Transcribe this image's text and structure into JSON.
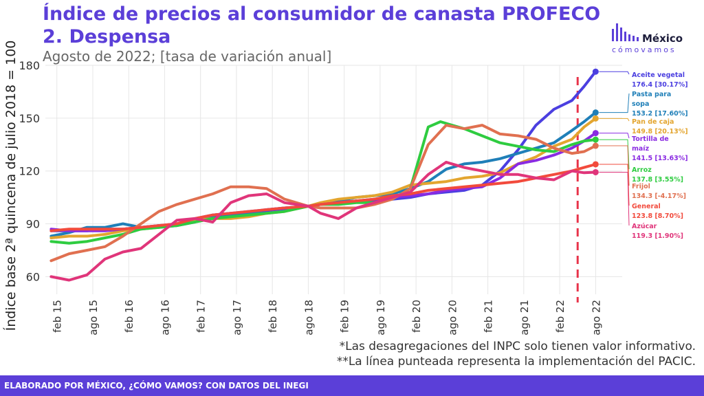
{
  "header": {
    "title_line1": "Índice de precios al consumidor de canasta PROFECO",
    "title_line2": "2. Despensa",
    "subtitle": "Agosto de 2022; [tasa de variación anual]"
  },
  "logo": {
    "name": "México",
    "tagline": "cómovamos"
  },
  "notes": {
    "note1": "*Las desagregaciones del INPC solo tienen valor informativo.",
    "note2": "**La línea punteada representa la implementación del PACIC."
  },
  "footer": {
    "text": "ELABORADO POR MÉXICO, ¿CÓMO VAMOS? CON DATOS DEL INEGI"
  },
  "colors": {
    "brand": "#5b3fd8",
    "grid": "#e6e6e6",
    "pacic_line": "#e8334a"
  },
  "chart_data": {
    "type": "line",
    "ylabel": "Índice base 2ª quincena de julio 2018 = 100",
    "ylim": [
      50,
      180
    ],
    "yticks": [
      60,
      90,
      120,
      150,
      180
    ],
    "xlim": [
      2014.92,
      2022.95
    ],
    "xticks": [
      {
        "label": "feb 15",
        "x": 2015.08
      },
      {
        "label": "ago 15",
        "x": 2015.58
      },
      {
        "label": "feb 16",
        "x": 2016.08
      },
      {
        "label": "ago 16",
        "x": 2016.58
      },
      {
        "label": "feb 17",
        "x": 2017.08
      },
      {
        "label": "ago 17",
        "x": 2017.58
      },
      {
        "label": "feb 18",
        "x": 2018.08
      },
      {
        "label": "ago 18",
        "x": 2018.58
      },
      {
        "label": "feb 19",
        "x": 2019.08
      },
      {
        "label": "ago 19",
        "x": 2019.58
      },
      {
        "label": "feb 20",
        "x": 2020.08
      },
      {
        "label": "ago 20",
        "x": 2020.58
      },
      {
        "label": "feb 21",
        "x": 2021.08
      },
      {
        "label": "ago 21",
        "x": 2021.58
      },
      {
        "label": "feb 22",
        "x": 2022.08
      },
      {
        "label": "ago 22",
        "x": 2022.58
      }
    ],
    "pacic_x": 2022.33,
    "grid": true,
    "legend": "right",
    "series": [
      {
        "name": "Aceite vegetal",
        "end_label": "176.4 [30.17%]",
        "color": "#4b3fe0",
        "points": [
          [
            2015.0,
            86
          ],
          [
            2015.25,
            86
          ],
          [
            2015.5,
            86
          ],
          [
            2015.75,
            87
          ],
          [
            2016.0,
            87
          ],
          [
            2016.25,
            88
          ],
          [
            2016.5,
            88
          ],
          [
            2016.75,
            89
          ],
          [
            2017.0,
            91
          ],
          [
            2017.25,
            95
          ],
          [
            2017.5,
            96
          ],
          [
            2017.75,
            96
          ],
          [
            2018.0,
            97
          ],
          [
            2018.25,
            98
          ],
          [
            2018.58,
            100
          ],
          [
            2018.75,
            101
          ],
          [
            2019.0,
            102
          ],
          [
            2019.25,
            103
          ],
          [
            2019.5,
            103
          ],
          [
            2019.75,
            104
          ],
          [
            2020.0,
            105
          ],
          [
            2020.25,
            107
          ],
          [
            2020.5,
            108
          ],
          [
            2020.75,
            109
          ],
          [
            2021.0,
            112
          ],
          [
            2021.25,
            120
          ],
          [
            2021.5,
            132
          ],
          [
            2021.75,
            146
          ],
          [
            2022.0,
            155
          ],
          [
            2022.25,
            160
          ],
          [
            2022.42,
            168
          ],
          [
            2022.58,
            176.4
          ]
        ]
      },
      {
        "name": "Pasta para sopa",
        "end_label": "153.2 [17.60%]",
        "color": "#1f7fb8",
        "points": [
          [
            2015.0,
            83
          ],
          [
            2015.25,
            85
          ],
          [
            2015.5,
            88
          ],
          [
            2015.75,
            88
          ],
          [
            2016.0,
            90
          ],
          [
            2016.25,
            88
          ],
          [
            2016.5,
            89
          ],
          [
            2016.75,
            89
          ],
          [
            2017.0,
            92
          ],
          [
            2017.25,
            94
          ],
          [
            2017.5,
            95
          ],
          [
            2017.75,
            96
          ],
          [
            2018.0,
            98
          ],
          [
            2018.25,
            99
          ],
          [
            2018.58,
            100
          ],
          [
            2018.75,
            101
          ],
          [
            2019.0,
            103
          ],
          [
            2019.25,
            105
          ],
          [
            2019.5,
            106
          ],
          [
            2019.75,
            107
          ],
          [
            2020.0,
            110
          ],
          [
            2020.25,
            114
          ],
          [
            2020.5,
            121
          ],
          [
            2020.75,
            124
          ],
          [
            2021.0,
            125
          ],
          [
            2021.25,
            127
          ],
          [
            2021.5,
            130
          ],
          [
            2021.75,
            133
          ],
          [
            2022.0,
            136
          ],
          [
            2022.25,
            143
          ],
          [
            2022.42,
            148
          ],
          [
            2022.58,
            153.2
          ]
        ]
      },
      {
        "name": "Pan de caja",
        "end_label": "149.8 [20.13%]",
        "color": "#e3a52f",
        "points": [
          [
            2015.0,
            82
          ],
          [
            2015.25,
            83
          ],
          [
            2015.5,
            83
          ],
          [
            2015.75,
            84
          ],
          [
            2016.0,
            86
          ],
          [
            2016.25,
            87
          ],
          [
            2016.5,
            88
          ],
          [
            2016.75,
            90
          ],
          [
            2017.0,
            92
          ],
          [
            2017.25,
            93
          ],
          [
            2017.5,
            93
          ],
          [
            2017.75,
            94
          ],
          [
            2018.0,
            96
          ],
          [
            2018.25,
            97
          ],
          [
            2018.58,
            100
          ],
          [
            2018.75,
            102
          ],
          [
            2019.0,
            104
          ],
          [
            2019.25,
            105
          ],
          [
            2019.5,
            106
          ],
          [
            2019.75,
            108
          ],
          [
            2020.0,
            112
          ],
          [
            2020.25,
            113
          ],
          [
            2020.5,
            114
          ],
          [
            2020.75,
            116
          ],
          [
            2021.0,
            117
          ],
          [
            2021.25,
            119
          ],
          [
            2021.5,
            124
          ],
          [
            2021.75,
            128
          ],
          [
            2022.0,
            134
          ],
          [
            2022.25,
            138
          ],
          [
            2022.42,
            145
          ],
          [
            2022.58,
            149.8
          ]
        ]
      },
      {
        "name": "Tortilla de maíz",
        "end_label": "141.5 [13.63%]",
        "color": "#8a2be2",
        "points": [
          [
            2015.0,
            87
          ],
          [
            2015.25,
            86
          ],
          [
            2015.5,
            86
          ],
          [
            2015.75,
            86
          ],
          [
            2016.0,
            87
          ],
          [
            2016.25,
            88
          ],
          [
            2016.5,
            89
          ],
          [
            2016.75,
            90
          ],
          [
            2017.0,
            93
          ],
          [
            2017.25,
            95
          ],
          [
            2017.5,
            96
          ],
          [
            2017.75,
            97
          ],
          [
            2018.0,
            98
          ],
          [
            2018.25,
            99
          ],
          [
            2018.58,
            100
          ],
          [
            2018.75,
            101
          ],
          [
            2019.0,
            102
          ],
          [
            2019.25,
            103
          ],
          [
            2019.5,
            104
          ],
          [
            2019.75,
            105
          ],
          [
            2020.0,
            106
          ],
          [
            2020.25,
            107
          ],
          [
            2020.5,
            109
          ],
          [
            2020.75,
            110
          ],
          [
            2021.0,
            111
          ],
          [
            2021.25,
            116
          ],
          [
            2021.5,
            124
          ],
          [
            2021.75,
            126
          ],
          [
            2022.0,
            129
          ],
          [
            2022.25,
            133
          ],
          [
            2022.42,
            137
          ],
          [
            2022.58,
            141.5
          ]
        ]
      },
      {
        "name": "Arroz",
        "end_label": "137.8 [3.55%]",
        "color": "#2ecc40",
        "points": [
          [
            2015.0,
            80
          ],
          [
            2015.25,
            79
          ],
          [
            2015.5,
            80
          ],
          [
            2015.75,
            82
          ],
          [
            2016.0,
            84
          ],
          [
            2016.25,
            87
          ],
          [
            2016.5,
            88
          ],
          [
            2016.75,
            89
          ],
          [
            2017.0,
            91
          ],
          [
            2017.25,
            93
          ],
          [
            2017.5,
            94
          ],
          [
            2017.75,
            95
          ],
          [
            2018.0,
            96
          ],
          [
            2018.25,
            97
          ],
          [
            2018.58,
            100
          ],
          [
            2018.75,
            101
          ],
          [
            2019.0,
            101
          ],
          [
            2019.25,
            102
          ],
          [
            2019.5,
            102
          ],
          [
            2019.75,
            104
          ],
          [
            2020.0,
            110
          ],
          [
            2020.25,
            145
          ],
          [
            2020.42,
            148
          ],
          [
            2020.58,
            146
          ],
          [
            2020.75,
            144
          ],
          [
            2021.0,
            140
          ],
          [
            2021.25,
            136
          ],
          [
            2021.5,
            134
          ],
          [
            2021.75,
            132
          ],
          [
            2022.0,
            131
          ],
          [
            2022.25,
            135
          ],
          [
            2022.42,
            137
          ],
          [
            2022.58,
            137.8
          ]
        ]
      },
      {
        "name": "Frijol",
        "end_label": "134.3 [-4.17%]",
        "color": "#e07050",
        "points": [
          [
            2015.0,
            69
          ],
          [
            2015.25,
            73
          ],
          [
            2015.5,
            75
          ],
          [
            2015.75,
            77
          ],
          [
            2016.0,
            83
          ],
          [
            2016.25,
            90
          ],
          [
            2016.5,
            97
          ],
          [
            2016.75,
            101
          ],
          [
            2017.0,
            104
          ],
          [
            2017.25,
            107
          ],
          [
            2017.5,
            111
          ],
          [
            2017.75,
            111
          ],
          [
            2018.0,
            110
          ],
          [
            2018.25,
            104
          ],
          [
            2018.58,
            100
          ],
          [
            2018.75,
            99
          ],
          [
            2019.0,
            99
          ],
          [
            2019.25,
            99
          ],
          [
            2019.5,
            101
          ],
          [
            2019.75,
            104
          ],
          [
            2020.0,
            110
          ],
          [
            2020.25,
            135
          ],
          [
            2020.5,
            146
          ],
          [
            2020.75,
            144
          ],
          [
            2021.0,
            146
          ],
          [
            2021.25,
            141
          ],
          [
            2021.5,
            140
          ],
          [
            2021.75,
            138
          ],
          [
            2022.0,
            133
          ],
          [
            2022.25,
            130
          ],
          [
            2022.42,
            131
          ],
          [
            2022.58,
            134.3
          ]
        ]
      },
      {
        "name": "General",
        "end_label": "123.8 [8.70%]",
        "color": "#f24a3c",
        "points": [
          [
            2015.0,
            86
          ],
          [
            2015.25,
            87
          ],
          [
            2015.5,
            87
          ],
          [
            2015.75,
            87
          ],
          [
            2016.0,
            87
          ],
          [
            2016.25,
            88
          ],
          [
            2016.5,
            89
          ],
          [
            2016.75,
            90
          ],
          [
            2017.0,
            93
          ],
          [
            2017.25,
            95
          ],
          [
            2017.5,
            96
          ],
          [
            2017.75,
            97
          ],
          [
            2018.0,
            98
          ],
          [
            2018.25,
            99
          ],
          [
            2018.58,
            100
          ],
          [
            2018.75,
            101
          ],
          [
            2019.0,
            102
          ],
          [
            2019.25,
            103
          ],
          [
            2019.5,
            104
          ],
          [
            2019.75,
            106
          ],
          [
            2020.0,
            107
          ],
          [
            2020.25,
            109
          ],
          [
            2020.5,
            110
          ],
          [
            2020.75,
            111
          ],
          [
            2021.0,
            112
          ],
          [
            2021.25,
            113
          ],
          [
            2021.5,
            114
          ],
          [
            2021.75,
            116
          ],
          [
            2022.0,
            118
          ],
          [
            2022.25,
            120
          ],
          [
            2022.42,
            122
          ],
          [
            2022.58,
            123.8
          ]
        ]
      },
      {
        "name": "Azúcar",
        "end_label": "119.3 [1.90%]",
        "color": "#e0357a",
        "points": [
          [
            2015.0,
            60
          ],
          [
            2015.25,
            58
          ],
          [
            2015.5,
            61
          ],
          [
            2015.75,
            70
          ],
          [
            2016.0,
            74
          ],
          [
            2016.25,
            76
          ],
          [
            2016.5,
            84
          ],
          [
            2016.75,
            92
          ],
          [
            2017.0,
            93
          ],
          [
            2017.25,
            91
          ],
          [
            2017.5,
            102
          ],
          [
            2017.75,
            106
          ],
          [
            2018.0,
            107
          ],
          [
            2018.25,
            102
          ],
          [
            2018.58,
            100
          ],
          [
            2018.75,
            96
          ],
          [
            2019.0,
            93
          ],
          [
            2019.25,
            99
          ],
          [
            2019.5,
            102
          ],
          [
            2019.75,
            105
          ],
          [
            2020.0,
            108
          ],
          [
            2020.25,
            118
          ],
          [
            2020.5,
            125
          ],
          [
            2020.75,
            122
          ],
          [
            2021.0,
            120
          ],
          [
            2021.25,
            118
          ],
          [
            2021.5,
            118
          ],
          [
            2021.75,
            116
          ],
          [
            2022.0,
            115
          ],
          [
            2022.25,
            120
          ],
          [
            2022.42,
            119
          ],
          [
            2022.58,
            119.3
          ]
        ]
      }
    ]
  }
}
